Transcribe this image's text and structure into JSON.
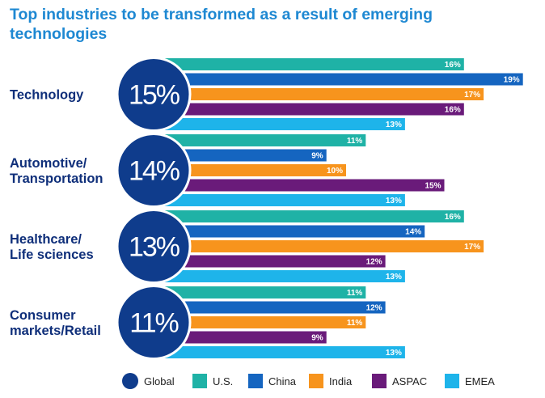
{
  "chart_data": {
    "type": "bar",
    "orientation": "horizontal",
    "title_lines": [
      "Top industries to be transformed as a result of emerging",
      "technologies"
    ],
    "categories": [
      {
        "label": [
          "Technology"
        ],
        "global": "15%"
      },
      {
        "label": [
          "Automotive/",
          "Transportation"
        ],
        "global": "14%"
      },
      {
        "label": [
          "Healthcare/",
          "Life sciences"
        ],
        "global": "13%"
      },
      {
        "label": [
          "Consumer",
          "markets/Retail"
        ],
        "global": "11%"
      }
    ],
    "series": [
      {
        "name": "U.S.",
        "color": "#1fb2a6",
        "values": [
          16,
          11,
          16,
          11
        ]
      },
      {
        "name": "China",
        "color": "#1565c0",
        "values": [
          19,
          9,
          14,
          12
        ]
      },
      {
        "name": "India",
        "color": "#f7941d",
        "values": [
          17,
          10,
          17,
          11
        ]
      },
      {
        "name": "ASPAC",
        "color": "#6a1b7a",
        "values": [
          16,
          15,
          12,
          9
        ]
      },
      {
        "name": "EMEA",
        "color": "#1eb4ea",
        "values": [
          13,
          13,
          13,
          13
        ]
      }
    ],
    "value_suffix": "%",
    "global_series": {
      "name": "Global",
      "color": "#0f3c8c"
    },
    "legend_position": "bottom"
  }
}
